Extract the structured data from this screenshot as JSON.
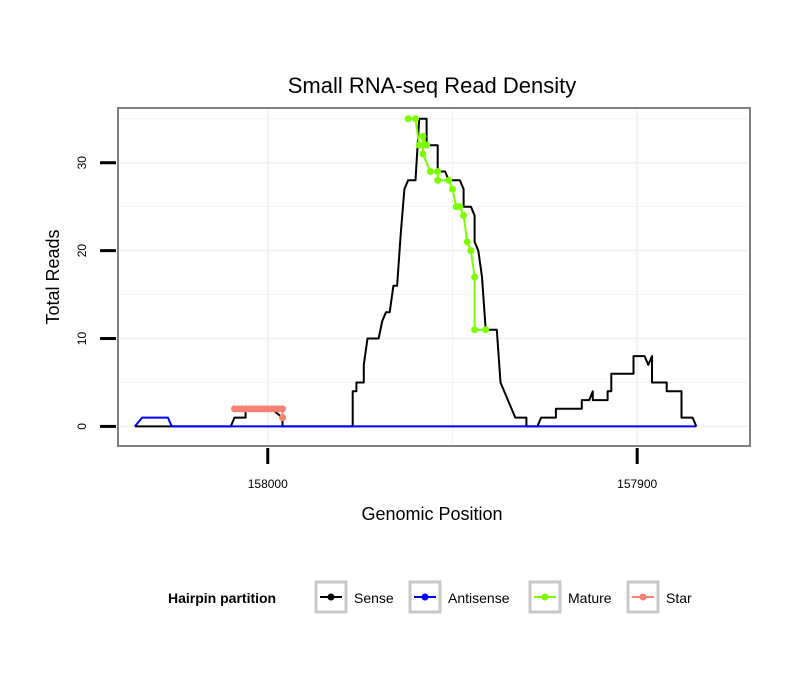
{
  "chart_data": {
    "type": "line",
    "title": "Small RNA-seq Read Density",
    "xlabel": "Genomic Position",
    "ylabel": "Total Reads",
    "x_reversed": true,
    "xlim": [
      158040,
      157870
    ],
    "ylim": [
      -2,
      36
    ],
    "x_ticks": [
      158000,
      157900
    ],
    "x_tick_labels": [
      "158000",
      "157900"
    ],
    "y_ticks": [
      0,
      10,
      20,
      30
    ],
    "y_tick_labels": [
      "0",
      "10",
      "20",
      "30"
    ],
    "legend": {
      "title": "Hairpin partition",
      "position": "bottom",
      "entries": [
        "Sense",
        "Antisense",
        "Mature",
        "Star"
      ]
    },
    "series": [
      {
        "name": "Sense",
        "color": "#000000",
        "mode": "line",
        "points": [
          [
            158036,
            0
          ],
          [
            158035,
            0
          ],
          [
            158010,
            0
          ],
          [
            158009,
            1
          ],
          [
            158006,
            1
          ],
          [
            158006,
            2
          ],
          [
            158000,
            2
          ],
          [
            157999,
            2
          ],
          [
            157996,
            1
          ],
          [
            157996,
            0
          ],
          [
            157977,
            0
          ],
          [
            157977,
            4
          ],
          [
            157976,
            4
          ],
          [
            157976,
            5
          ],
          [
            157974,
            5
          ],
          [
            157974,
            7
          ],
          [
            157973,
            10
          ],
          [
            157970,
            10
          ],
          [
            157969,
            12
          ],
          [
            157968,
            13
          ],
          [
            157967,
            13
          ],
          [
            157966,
            16
          ],
          [
            157965,
            16
          ],
          [
            157964,
            22
          ],
          [
            157963,
            27
          ],
          [
            157962,
            28
          ],
          [
            157960,
            28
          ],
          [
            157959,
            35
          ],
          [
            157957,
            35
          ],
          [
            157957,
            32
          ],
          [
            157954,
            32
          ],
          [
            157954,
            29
          ],
          [
            157952,
            29
          ],
          [
            157951,
            28
          ],
          [
            157948,
            28
          ],
          [
            157947,
            27
          ],
          [
            157947,
            25
          ],
          [
            157945,
            25
          ],
          [
            157944,
            24
          ],
          [
            157944,
            21
          ],
          [
            157943,
            20
          ],
          [
            157942,
            17
          ],
          [
            157941,
            11
          ],
          [
            157938,
            11
          ],
          [
            157937,
            5
          ],
          [
            157933,
            1
          ],
          [
            157930,
            1
          ],
          [
            157930,
            0
          ],
          [
            157927,
            0
          ],
          [
            157926,
            1
          ],
          [
            157922,
            1
          ],
          [
            157922,
            2
          ],
          [
            157915,
            2
          ],
          [
            157915,
            3
          ],
          [
            157913,
            3
          ],
          [
            157912,
            4
          ],
          [
            157912,
            3
          ],
          [
            157908,
            3
          ],
          [
            157908,
            4
          ],
          [
            157907,
            4
          ],
          [
            157907,
            6
          ],
          [
            157902,
            6
          ],
          [
            157901,
            6
          ],
          [
            157901,
            8
          ],
          [
            157898,
            8
          ],
          [
            157897,
            7
          ],
          [
            157896,
            8
          ],
          [
            157896,
            5
          ],
          [
            157892,
            5
          ],
          [
            157892,
            4
          ],
          [
            157888,
            4
          ],
          [
            157888,
            1
          ],
          [
            157885,
            1
          ],
          [
            157884,
            0
          ]
        ]
      },
      {
        "name": "Antisense",
        "color": "#0000ff",
        "mode": "line",
        "points": [
          [
            158036,
            0
          ],
          [
            158034,
            1
          ],
          [
            158027,
            1
          ],
          [
            158026,
            0
          ],
          [
            157884,
            0
          ]
        ]
      },
      {
        "name": "Mature",
        "color": "#7cfc00",
        "mode": "line+points",
        "points": [
          [
            157962,
            35
          ],
          [
            157960,
            35
          ],
          [
            157959,
            32
          ],
          [
            157957,
            32
          ],
          [
            157958,
            33
          ],
          [
            157958,
            31
          ],
          [
            157956,
            29
          ],
          [
            157954,
            29
          ],
          [
            157954,
            28
          ],
          [
            157951,
            28
          ],
          [
            157950,
            27
          ],
          [
            157949,
            25
          ],
          [
            157948,
            25
          ],
          [
            157947,
            24
          ],
          [
            157946,
            21
          ],
          [
            157945,
            20
          ],
          [
            157944,
            17
          ],
          [
            157944,
            11
          ],
          [
            157941,
            11
          ]
        ]
      },
      {
        "name": "Star",
        "color": "#fa8072",
        "mode": "line+points",
        "points": [
          [
            158009,
            2
          ],
          [
            158008,
            2
          ],
          [
            158007,
            2
          ],
          [
            158006,
            2
          ],
          [
            158005,
            2
          ],
          [
            158004,
            2
          ],
          [
            158003,
            2
          ],
          [
            158002,
            2
          ],
          [
            158001,
            2
          ],
          [
            158000,
            2
          ],
          [
            157999,
            2
          ],
          [
            157998,
            2
          ],
          [
            157997,
            2
          ],
          [
            157996,
            2
          ],
          [
            157996,
            1
          ]
        ]
      }
    ]
  }
}
